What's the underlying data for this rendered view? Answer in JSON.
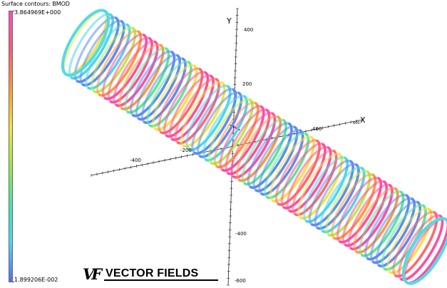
{
  "legend": {
    "title": "Surface contours: BMOD",
    "max_value": "3.864969E+000",
    "min_value": "1.899206E-002",
    "gradient_colors": [
      "#ff4fb8",
      "#ff5a78",
      "#ff9a3a",
      "#f2e63a",
      "#9de84c",
      "#44e6a8",
      "#48d8ef",
      "#5a6cf0"
    ]
  },
  "axes": {
    "y_label": "Y",
    "x_label": "X",
    "y_ticks": [
      "400",
      "200",
      "-400",
      "-600"
    ],
    "x_ticks": [
      "-400",
      "-200",
      "400",
      "600"
    ]
  },
  "logo": {
    "mark": "VF",
    "name": "VECTOR FIELDS"
  },
  "colors": {
    "coil_palette": [
      "#ff4fa0",
      "#ff6a6a",
      "#ff9a3a",
      "#f7e24a",
      "#b8ee4a",
      "#5ee892",
      "#4ed7e8",
      "#5f8cf0"
    ]
  }
}
